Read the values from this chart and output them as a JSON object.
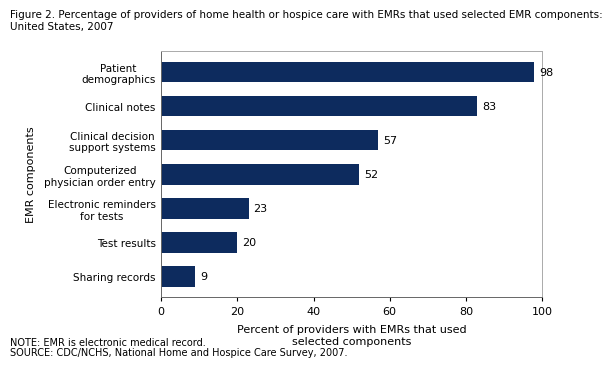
{
  "title_line1": "Figure 2. Percentage of providers of home health or hospice care with EMRs that used selected EMR components:",
  "title_line2": "United States, 2007",
  "categories": [
    "Sharing records",
    "Test results",
    "Electronic reminders\nfor tests",
    "Computerized\nphysician order entry",
    "Clinical decision\nsupport systems",
    "Clinical notes",
    "Patient\ndemographics"
  ],
  "values": [
    9,
    20,
    23,
    52,
    57,
    83,
    98
  ],
  "bar_color": "#0d2b5e",
  "xlabel": "Percent of providers with EMRs that used\nselected components",
  "ylabel": "EMR components",
  "xlim": [
    0,
    100
  ],
  "xticks": [
    0,
    20,
    40,
    60,
    80,
    100
  ],
  "note_line1": "NOTE: EMR is electronic medical record.",
  "note_line2": "SOURCE: CDC/NCHS, National Home and Hospice Care Survey, 2007.",
  "bar_height": 0.6,
  "label_fontsize": 7.5,
  "title_fontsize": 7.5,
  "xlabel_fontsize": 8,
  "ylabel_fontsize": 8,
  "tick_fontsize": 8,
  "note_fontsize": 7,
  "value_fontsize": 8
}
